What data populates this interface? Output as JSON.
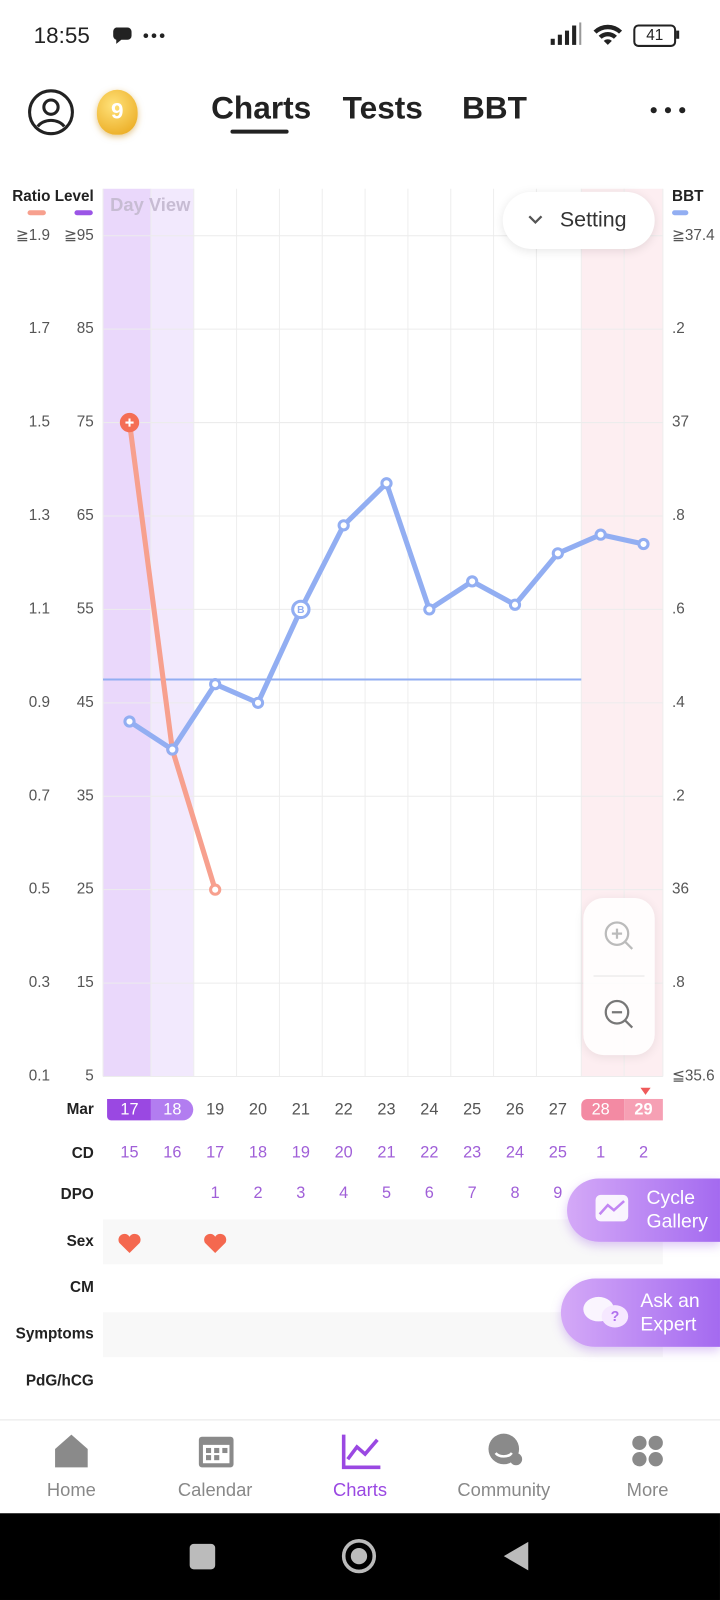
{
  "status_bar": {
    "time": "18:55",
    "battery": "41"
  },
  "header": {
    "badge": "9",
    "tabs": [
      "Charts",
      "Tests",
      "BBT"
    ]
  },
  "chart_data": {
    "type": "line",
    "view_label": "Day View",
    "setting_button": "Setting",
    "ratio_label": "Ratio",
    "month": "Mar",
    "categories": [
      "17",
      "18",
      "19",
      "20",
      "21",
      "22",
      "23",
      "24",
      "25",
      "26",
      "27",
      "28",
      "29"
    ],
    "ratio_lim": [
      0.1,
      1.9
    ],
    "ratio_ticks": [
      {
        "value": 1.9,
        "label": "≧1.9"
      },
      1.7,
      1.5,
      1.3,
      1.1,
      0.9,
      0.7,
      0.5,
      0.3,
      0.1
    ],
    "ylim": [
      5,
      95
    ],
    "yticks": [
      {
        "value": 95,
        "label": "≧95"
      },
      85,
      75,
      65,
      55,
      45,
      35,
      25,
      15,
      5
    ],
    "y2lim": [
      35.6,
      37.4
    ],
    "y2ticks": [
      {
        "value": 37.4,
        "label": "≧37.4"
      },
      {
        "value": 37.2,
        "label": ".2"
      },
      37,
      {
        "value": 36.8,
        "label": ".8"
      },
      {
        "value": 36.6,
        "label": ".6"
      },
      {
        "value": 36.4,
        "label": ".4"
      },
      {
        "value": 36.2,
        "label": ".2"
      },
      36,
      {
        "value": 35.8,
        "label": ".8"
      },
      {
        "value": 35.6,
        "label": "≦35.6"
      }
    ],
    "series": [
      {
        "name": "Level",
        "color": "#f7a08e",
        "values": [
          75,
          40,
          25,
          null,
          null,
          null,
          null,
          null,
          null,
          null,
          null,
          null,
          null
        ]
      },
      {
        "name": "BBT",
        "color": "#92aef2",
        "axis": "y2",
        "values": [
          36.36,
          36.3,
          36.44,
          36.4,
          36.6,
          36.78,
          36.87,
          36.6,
          36.66,
          36.61,
          36.72,
          36.76,
          36.74
        ]
      }
    ],
    "coverline": 36.45,
    "bbt_marker": "B",
    "grid": true
  },
  "rows": {
    "cd_label": "CD",
    "cd": [
      15,
      16,
      17,
      18,
      19,
      20,
      21,
      22,
      23,
      24,
      25,
      1,
      2
    ],
    "dpo_label": "DPO",
    "dpo": [
      null,
      null,
      1,
      2,
      3,
      4,
      5,
      6,
      7,
      8,
      9,
      null,
      null
    ],
    "other_labels": [
      "Sex",
      "CM",
      "Symptoms",
      "PdG/hCG"
    ]
  },
  "floating_buttons": [
    "Cycle Gallery",
    "Ask an Expert"
  ],
  "nav": [
    "Home",
    "Calendar",
    "Charts",
    "Community",
    "More"
  ]
}
